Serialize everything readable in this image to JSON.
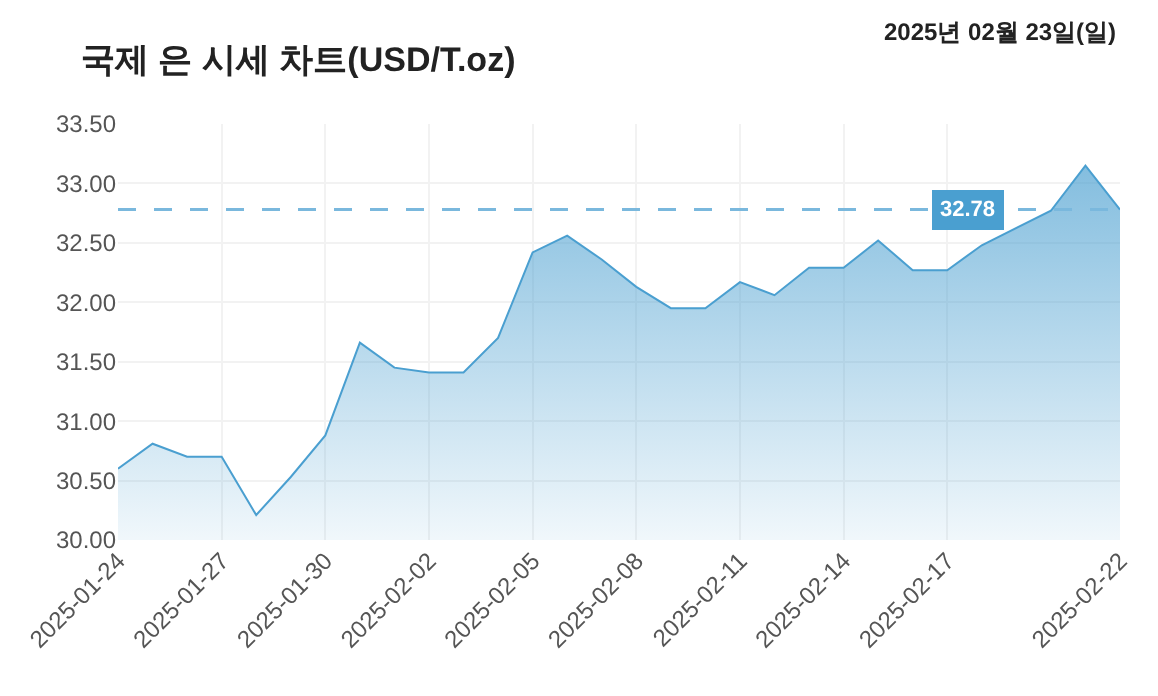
{
  "chart_data": {
    "type": "area",
    "title": "국제 은 시세 차트(USD/T.oz)",
    "annotations": [
      "2025년 02월 23일(일)"
    ],
    "x": [
      "2025-01-24",
      "2025-01-25",
      "2025-01-26",
      "2025-01-27",
      "2025-01-28",
      "2025-01-29",
      "2025-01-30",
      "2025-01-31",
      "2025-02-01",
      "2025-02-02",
      "2025-02-03",
      "2025-02-04",
      "2025-02-05",
      "2025-02-06",
      "2025-02-07",
      "2025-02-08",
      "2025-02-09",
      "2025-02-10",
      "2025-02-11",
      "2025-02-12",
      "2025-02-13",
      "2025-02-14",
      "2025-02-15",
      "2025-02-16",
      "2025-02-17",
      "2025-02-18",
      "2025-02-19",
      "2025-02-20",
      "2025-02-21",
      "2025-02-22"
    ],
    "series": [
      {
        "color": "#4a9fd0",
        "values": [
          30.6,
          30.81,
          30.7,
          30.7,
          30.21,
          30.53,
          30.88,
          31.66,
          31.45,
          31.41,
          31.41,
          31.7,
          32.42,
          32.56,
          32.36,
          32.13,
          31.95,
          31.95,
          32.17,
          32.06,
          32.29,
          32.29,
          32.52,
          32.27,
          32.27,
          32.48,
          null,
          32.77,
          33.15,
          32.78
        ]
      }
    ],
    "xlim": [
      "2025-01-24",
      "2025-02-22"
    ],
    "xticks": [
      "2025-01-24",
      "2025-01-27",
      "2025-01-30",
      "2025-02-02",
      "2025-02-05",
      "2025-02-08",
      "2025-02-11",
      "2025-02-14",
      "2025-02-17",
      "2025-02-22"
    ],
    "ylim": [
      30,
      33.5
    ],
    "yticks": [
      {
        "value": 30,
        "label": "30.00"
      },
      {
        "value": 30.5,
        "label": "30.50"
      },
      {
        "value": 31,
        "label": "31.00"
      },
      {
        "value": 31.5,
        "label": "31.50"
      },
      {
        "value": 32,
        "label": "32.00"
      },
      {
        "value": 32.5,
        "label": "32.50"
      },
      {
        "value": 33,
        "label": "33.00"
      },
      {
        "value": 33.5,
        "label": "33.50"
      }
    ],
    "ref_lines": [
      {
        "axis": "y",
        "value": 32.78,
        "label": "32.78",
        "color": "#7ab8dd",
        "line_style": "dashed"
      }
    ],
    "grid": true,
    "marker": "none",
    "line_style": "solid"
  }
}
